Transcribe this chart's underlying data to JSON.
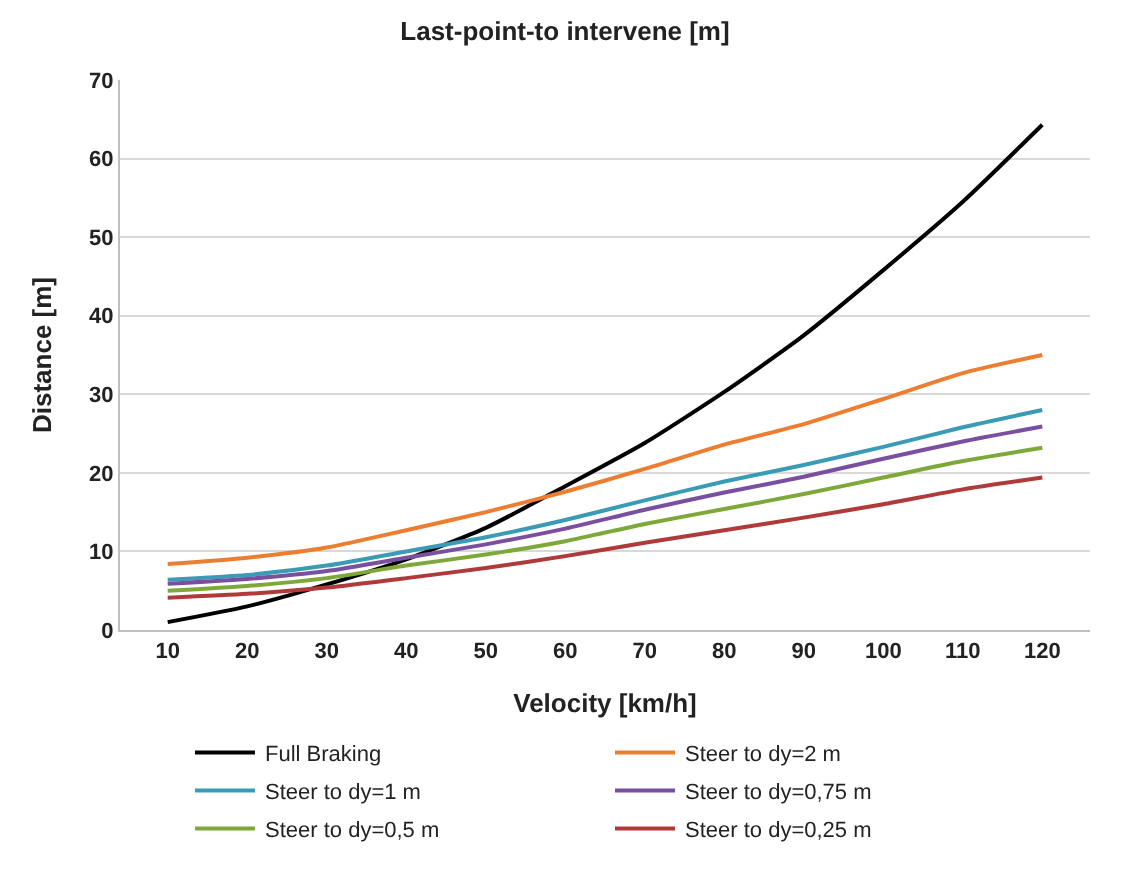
{
  "chart_data": {
    "type": "line",
    "title": "Last-point-to intervene [m]",
    "xlabel": "Velocity [km/h]",
    "ylabel": "Distance [m]",
    "categories": [
      "10",
      "20",
      "30",
      "40",
      "50",
      "60",
      "70",
      "80",
      "90",
      "100",
      "110",
      "120"
    ],
    "ylim": [
      0,
      70
    ],
    "yticks": [
      0,
      10,
      20,
      30,
      40,
      50,
      60,
      70
    ],
    "grid": "y",
    "legend": "bottom",
    "marker": "none",
    "series": [
      {
        "name": "Full Braking",
        "color": "#000000",
        "values": [
          1,
          3,
          5.8,
          9,
          13,
          18.3,
          23.8,
          30.3,
          37.5,
          45.8,
          54.5,
          64.3
        ]
      },
      {
        "name": "Steer to dy=2 m",
        "color": "#ed7d31",
        "values": [
          8.4,
          9.2,
          10.5,
          12.7,
          15,
          17.6,
          20.5,
          23.6,
          26.2,
          29.4,
          32.7,
          35
        ]
      },
      {
        "name": "Steer to dy=1 m",
        "color": "#3a9bb5",
        "values": [
          6.4,
          7,
          8.2,
          10,
          11.8,
          14,
          16.5,
          18.9,
          21,
          23.3,
          25.8,
          28
        ]
      },
      {
        "name": "Steer to dy=0,75 m",
        "color": "#7b4fa0",
        "values": [
          5.9,
          6.5,
          7.5,
          9.2,
          10.9,
          12.9,
          15.3,
          17.5,
          19.5,
          21.8,
          24,
          25.9
        ]
      },
      {
        "name": "Steer to dy=0,5 m",
        "color": "#7fa83a",
        "values": [
          5,
          5.6,
          6.6,
          8.2,
          9.6,
          11.3,
          13.5,
          15.4,
          17.3,
          19.4,
          21.5,
          23.2
        ]
      },
      {
        "name": "Steer to dy=0,25 m",
        "color": "#b03a3a",
        "values": [
          4.1,
          4.6,
          5.4,
          6.6,
          7.9,
          9.4,
          11.1,
          12.7,
          14.3,
          16,
          17.9,
          19.4
        ]
      }
    ]
  }
}
